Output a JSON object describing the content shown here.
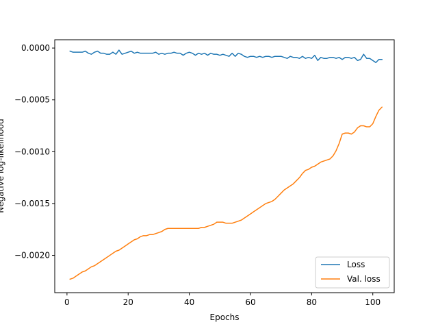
{
  "chart_data": {
    "type": "line",
    "xlabel": "Epochs",
    "ylabel": "Negative log-likelihood",
    "xlim": [
      -4,
      107
    ],
    "ylim": [
      -0.00236,
      8e-05
    ],
    "xticks": [
      0,
      20,
      40,
      60,
      80,
      100
    ],
    "yticks": [
      0.0,
      -0.0005,
      -0.001,
      -0.0015,
      -0.002
    ],
    "ytick_labels": [
      "0.0000",
      "−0.0005",
      "−0.0010",
      "−0.0015",
      "−0.0020"
    ],
    "grid": false,
    "legend_position": "lower-right",
    "series": [
      {
        "name": "Loss",
        "color": "#1f77b4",
        "points": [
          [
            1,
            -3e-05
          ],
          [
            2,
            -4e-05
          ],
          [
            3,
            -4e-05
          ],
          [
            4,
            -4e-05
          ],
          [
            5,
            -4e-05
          ],
          [
            6,
            -3e-05
          ],
          [
            7,
            -5e-05
          ],
          [
            8,
            -6e-05
          ],
          [
            9,
            -4e-05
          ],
          [
            10,
            -3e-05
          ],
          [
            11,
            -5e-05
          ],
          [
            12,
            -5e-05
          ],
          [
            13,
            -6e-05
          ],
          [
            14,
            -6e-05
          ],
          [
            15,
            -4e-05
          ],
          [
            16,
            -6e-05
          ],
          [
            17,
            -2e-05
          ],
          [
            18,
            -6e-05
          ],
          [
            19,
            -5e-05
          ],
          [
            20,
            -4e-05
          ],
          [
            21,
            -3e-05
          ],
          [
            22,
            -5e-05
          ],
          [
            23,
            -4e-05
          ],
          [
            24,
            -5e-05
          ],
          [
            25,
            -5e-05
          ],
          [
            26,
            -5e-05
          ],
          [
            27,
            -5e-05
          ],
          [
            28,
            -5e-05
          ],
          [
            29,
            -4e-05
          ],
          [
            30,
            -6e-05
          ],
          [
            31,
            -5e-05
          ],
          [
            32,
            -6e-05
          ],
          [
            33,
            -5e-05
          ],
          [
            34,
            -5e-05
          ],
          [
            35,
            -4e-05
          ],
          [
            36,
            -5e-05
          ],
          [
            37,
            -5e-05
          ],
          [
            38,
            -7e-05
          ],
          [
            39,
            -5e-05
          ],
          [
            40,
            -4e-05
          ],
          [
            41,
            -5e-05
          ],
          [
            42,
            -7e-05
          ],
          [
            43,
            -5e-05
          ],
          [
            44,
            -6e-05
          ],
          [
            45,
            -5e-05
          ],
          [
            46,
            -7e-05
          ],
          [
            47,
            -5e-05
          ],
          [
            48,
            -6e-05
          ],
          [
            49,
            -6e-05
          ],
          [
            50,
            -7e-05
          ],
          [
            51,
            -6e-05
          ],
          [
            52,
            -7e-05
          ],
          [
            53,
            -8e-05
          ],
          [
            54,
            -5e-05
          ],
          [
            55,
            -8e-05
          ],
          [
            56,
            -5e-05
          ],
          [
            57,
            -6e-05
          ],
          [
            58,
            -8e-05
          ],
          [
            59,
            -9e-05
          ],
          [
            60,
            -8e-05
          ],
          [
            61,
            -8e-05
          ],
          [
            62,
            -9e-05
          ],
          [
            63,
            -8e-05
          ],
          [
            64,
            -9e-05
          ],
          [
            65,
            -8e-05
          ],
          [
            66,
            -8e-05
          ],
          [
            67,
            -9e-05
          ],
          [
            68,
            -8e-05
          ],
          [
            69,
            -8e-05
          ],
          [
            70,
            -8e-05
          ],
          [
            71,
            -9e-05
          ],
          [
            72,
            -0.0001
          ],
          [
            73,
            -8e-05
          ],
          [
            74,
            -9e-05
          ],
          [
            75,
            -9e-05
          ],
          [
            76,
            -0.0001
          ],
          [
            77,
            -8e-05
          ],
          [
            78,
            -0.0001
          ],
          [
            79,
            -9e-05
          ],
          [
            80,
            -0.0001
          ],
          [
            81,
            -7e-05
          ],
          [
            82,
            -0.00012
          ],
          [
            83,
            -9e-05
          ],
          [
            84,
            -0.0001
          ],
          [
            85,
            -0.0001
          ],
          [
            86,
            -9e-05
          ],
          [
            87,
            -9e-05
          ],
          [
            88,
            -0.0001
          ],
          [
            89,
            -9e-05
          ],
          [
            90,
            -0.00011
          ],
          [
            91,
            -9e-05
          ],
          [
            92,
            -9e-05
          ],
          [
            93,
            -0.0001
          ],
          [
            94,
            -9e-05
          ],
          [
            95,
            -0.00012
          ],
          [
            96,
            -0.00011
          ],
          [
            97,
            -6e-05
          ],
          [
            98,
            -0.0001
          ],
          [
            99,
            -0.0001
          ],
          [
            100,
            -0.00012
          ],
          [
            101,
            -0.00014
          ],
          [
            102,
            -0.00011
          ],
          [
            103,
            -0.00011
          ]
        ]
      },
      {
        "name": "Val. loss",
        "color": "#ff7f0e",
        "points": [
          [
            1,
            -0.00223
          ],
          [
            2,
            -0.00222
          ],
          [
            3,
            -0.0022
          ],
          [
            4,
            -0.00218
          ],
          [
            5,
            -0.00216
          ],
          [
            6,
            -0.00215
          ],
          [
            7,
            -0.00213
          ],
          [
            8,
            -0.00211
          ],
          [
            9,
            -0.0021
          ],
          [
            10,
            -0.00208
          ],
          [
            11,
            -0.00206
          ],
          [
            12,
            -0.00204
          ],
          [
            13,
            -0.00202
          ],
          [
            14,
            -0.002
          ],
          [
            15,
            -0.00198
          ],
          [
            16,
            -0.00196
          ],
          [
            17,
            -0.00195
          ],
          [
            18,
            -0.00193
          ],
          [
            19,
            -0.00191
          ],
          [
            20,
            -0.00189
          ],
          [
            21,
            -0.00187
          ],
          [
            22,
            -0.00185
          ],
          [
            23,
            -0.00184
          ],
          [
            24,
            -0.00182
          ],
          [
            25,
            -0.00181
          ],
          [
            26,
            -0.00181
          ],
          [
            27,
            -0.0018
          ],
          [
            28,
            -0.0018
          ],
          [
            29,
            -0.00179
          ],
          [
            30,
            -0.00178
          ],
          [
            31,
            -0.00177
          ],
          [
            32,
            -0.00175
          ],
          [
            33,
            -0.00174
          ],
          [
            34,
            -0.00174
          ],
          [
            35,
            -0.00174
          ],
          [
            36,
            -0.00174
          ],
          [
            37,
            -0.00174
          ],
          [
            38,
            -0.00174
          ],
          [
            39,
            -0.00174
          ],
          [
            40,
            -0.00174
          ],
          [
            41,
            -0.00174
          ],
          [
            42,
            -0.00174
          ],
          [
            43,
            -0.00174
          ],
          [
            44,
            -0.00173
          ],
          [
            45,
            -0.00173
          ],
          [
            46,
            -0.00172
          ],
          [
            47,
            -0.00171
          ],
          [
            48,
            -0.0017
          ],
          [
            49,
            -0.00168
          ],
          [
            50,
            -0.00168
          ],
          [
            51,
            -0.00168
          ],
          [
            52,
            -0.00169
          ],
          [
            53,
            -0.00169
          ],
          [
            54,
            -0.00169
          ],
          [
            55,
            -0.00168
          ],
          [
            56,
            -0.00167
          ],
          [
            57,
            -0.00166
          ],
          [
            58,
            -0.00164
          ],
          [
            59,
            -0.00162
          ],
          [
            60,
            -0.0016
          ],
          [
            61,
            -0.00158
          ],
          [
            62,
            -0.00156
          ],
          [
            63,
            -0.00154
          ],
          [
            64,
            -0.00152
          ],
          [
            65,
            -0.0015
          ],
          [
            66,
            -0.00149
          ],
          [
            67,
            -0.00148
          ],
          [
            68,
            -0.00146
          ],
          [
            69,
            -0.00143
          ],
          [
            70,
            -0.0014
          ],
          [
            71,
            -0.00137
          ],
          [
            72,
            -0.00135
          ],
          [
            73,
            -0.00133
          ],
          [
            74,
            -0.00131
          ],
          [
            75,
            -0.00128
          ],
          [
            76,
            -0.00125
          ],
          [
            77,
            -0.00121
          ],
          [
            78,
            -0.00118
          ],
          [
            79,
            -0.00117
          ],
          [
            80,
            -0.00115
          ],
          [
            81,
            -0.00114
          ],
          [
            82,
            -0.00112
          ],
          [
            83,
            -0.0011
          ],
          [
            84,
            -0.00109
          ],
          [
            85,
            -0.00108
          ],
          [
            86,
            -0.00107
          ],
          [
            87,
            -0.00104
          ],
          [
            88,
            -0.00099
          ],
          [
            89,
            -0.00092
          ],
          [
            90,
            -0.00083
          ],
          [
            91,
            -0.00082
          ],
          [
            92,
            -0.00082
          ],
          [
            93,
            -0.00083
          ],
          [
            94,
            -0.00081
          ],
          [
            95,
            -0.00077
          ],
          [
            96,
            -0.00075
          ],
          [
            97,
            -0.00075
          ],
          [
            98,
            -0.00076
          ],
          [
            99,
            -0.00076
          ],
          [
            100,
            -0.00073
          ],
          [
            101,
            -0.00066
          ],
          [
            102,
            -0.0006
          ],
          [
            103,
            -0.00057
          ]
        ]
      }
    ]
  }
}
